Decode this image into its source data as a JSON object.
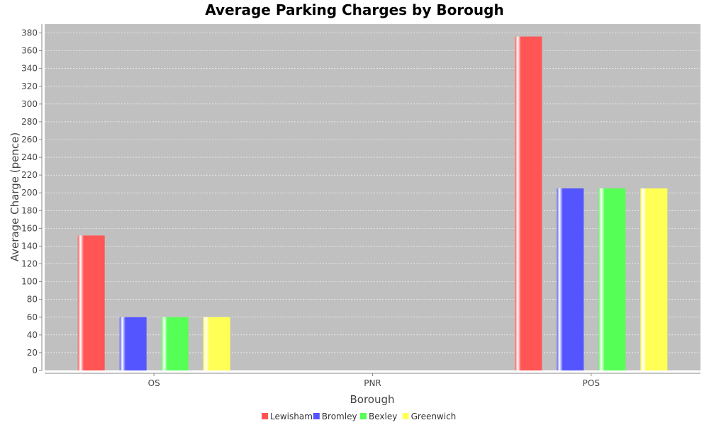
{
  "chart_data": {
    "type": "bar",
    "title": "Average Parking Charges by Borough",
    "xlabel": "Borough",
    "ylabel": "Average Charge (pence)",
    "categories": [
      "OS",
      "PNR",
      "POS"
    ],
    "ylim": [
      0,
      390
    ],
    "yticks": [
      0,
      20,
      40,
      60,
      80,
      100,
      120,
      140,
      160,
      180,
      200,
      220,
      240,
      260,
      280,
      300,
      320,
      340,
      360,
      380
    ],
    "grid": true,
    "legend_position": "bottom",
    "plot_background": "#c0c0c0",
    "series": [
      {
        "name": "Lewisham",
        "color": "#ff5555",
        "values": [
          152,
          0,
          376
        ]
      },
      {
        "name": "Bromley",
        "color": "#5555ff",
        "values": [
          60,
          0,
          205
        ]
      },
      {
        "name": "Bexley",
        "color": "#55ff55",
        "values": [
          60,
          0,
          205
        ]
      },
      {
        "name": "Greenwich",
        "color": "#ffff55",
        "values": [
          60,
          0,
          205
        ]
      }
    ]
  }
}
